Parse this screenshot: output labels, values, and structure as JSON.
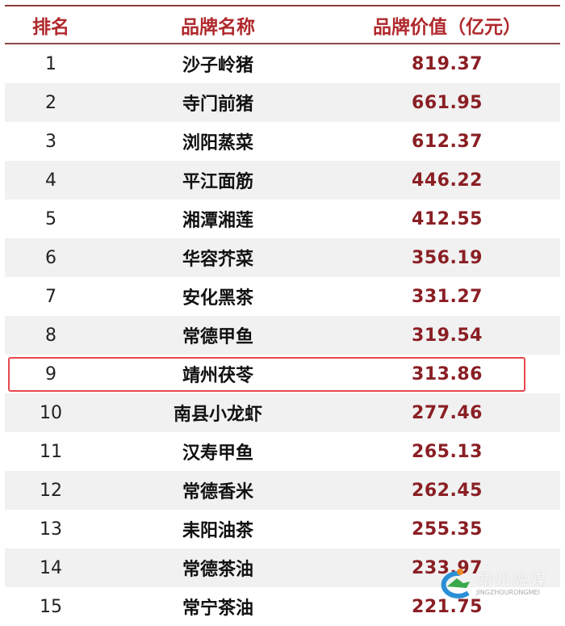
{
  "header": {
    "rank": "排名",
    "brand": "品牌名称",
    "value": "品牌价值（亿元）"
  },
  "rows": [
    {
      "rank": "1",
      "brand": "沙子岭猪",
      "value": "819.37"
    },
    {
      "rank": "2",
      "brand": "寺门前猪",
      "value": "661.95"
    },
    {
      "rank": "3",
      "brand": "浏阳蒸菜",
      "value": "612.37"
    },
    {
      "rank": "4",
      "brand": "平江面筋",
      "value": "446.22"
    },
    {
      "rank": "5",
      "brand": "湘潭湘莲",
      "value": "412.55"
    },
    {
      "rank": "6",
      "brand": "华容芥菜",
      "value": "356.19"
    },
    {
      "rank": "7",
      "brand": "安化黑茶",
      "value": "331.27"
    },
    {
      "rank": "8",
      "brand": "常德甲鱼",
      "value": "319.54"
    },
    {
      "rank": "9",
      "brand": "靖州茯苓",
      "value": "313.86"
    },
    {
      "rank": "10",
      "brand": "南县小龙虾",
      "value": "277.46"
    },
    {
      "rank": "11",
      "brand": "汉寿甲鱼",
      "value": "265.13"
    },
    {
      "rank": "12",
      "brand": "常德香米",
      "value": "262.45"
    },
    {
      "rank": "13",
      "brand": "耒阳油茶",
      "value": "255.35"
    },
    {
      "rank": "14",
      "brand": "常德茶油",
      "value": "233.97"
    },
    {
      "rank": "15",
      "brand": "常宁茶油",
      "value": "221.75"
    }
  ],
  "highlighted_rank": "9",
  "watermark": {
    "cn": "靖州融媒",
    "en": "JINGZHOURONGMEI"
  },
  "colors": {
    "header": "#b0282c",
    "value": "#8a1f24",
    "highlight_border": "#e8474d"
  }
}
